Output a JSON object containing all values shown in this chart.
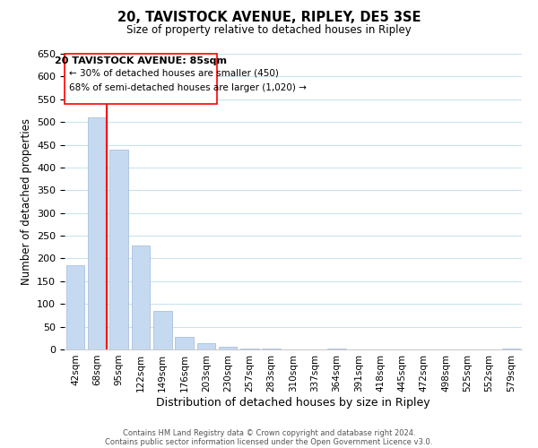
{
  "title": "20, TAVISTOCK AVENUE, RIPLEY, DE5 3SE",
  "subtitle": "Size of property relative to detached houses in Ripley",
  "xlabel": "Distribution of detached houses by size in Ripley",
  "ylabel": "Number of detached properties",
  "footer_line1": "Contains HM Land Registry data © Crown copyright and database right 2024.",
  "footer_line2": "Contains public sector information licensed under the Open Government Licence v3.0.",
  "bar_labels": [
    "42sqm",
    "68sqm",
    "95sqm",
    "122sqm",
    "149sqm",
    "176sqm",
    "203sqm",
    "230sqm",
    "257sqm",
    "283sqm",
    "310sqm",
    "337sqm",
    "364sqm",
    "391sqm",
    "418sqm",
    "445sqm",
    "472sqm",
    "498sqm",
    "525sqm",
    "552sqm",
    "579sqm"
  ],
  "bar_values": [
    185,
    510,
    440,
    228,
    85,
    28,
    13,
    5,
    2,
    1,
    0,
    0,
    2,
    0,
    0,
    0,
    0,
    0,
    0,
    0,
    2
  ],
  "bar_color": "#c5d9f1",
  "bar_edge_color": "#a0b8d8",
  "highlight_line_color": "red",
  "ylim": [
    0,
    650
  ],
  "yticks": [
    0,
    50,
    100,
    150,
    200,
    250,
    300,
    350,
    400,
    450,
    500,
    550,
    600,
    650
  ],
  "annotation_title": "20 TAVISTOCK AVENUE: 85sqm",
  "annotation_line2": "← 30% of detached houses are smaller (450)",
  "annotation_line3": "68% of semi-detached houses are larger (1,020) →"
}
